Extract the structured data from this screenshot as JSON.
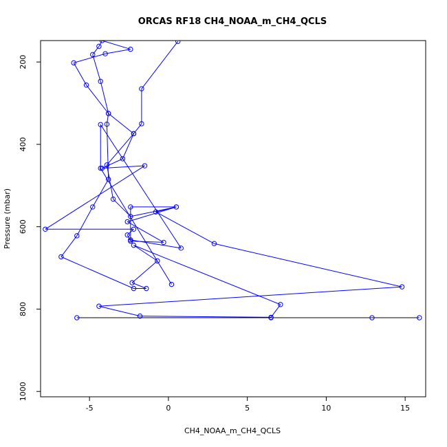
{
  "chart_data": {
    "type": "scatter",
    "title": "ORCAS RF18 CH4_NOAA_m_CH4_QCLS",
    "xlabel": "CH4_NOAA_m_CH4_QCLS",
    "ylabel": "Pressure (mbar)",
    "xlim": [
      -8.1,
      16.3
    ],
    "ylim": [
      1013,
      148
    ],
    "y_reversed": true,
    "x_ticks": [
      -5,
      0,
      5,
      10,
      15
    ],
    "x_tick_labels": [
      "-5",
      "0",
      "5",
      "10",
      "15"
    ],
    "y_ticks": [
      200,
      400,
      600,
      800,
      1000
    ],
    "y_tick_labels": [
      "200",
      "400",
      "600",
      "800",
      "1000"
    ],
    "grid": false,
    "series": [
      {
        "color": "#0000ff",
        "marker": "open-circle",
        "connect": true,
        "points": [
          {
            "x": 0.6,
            "y": 150
          },
          {
            "x": -1.7,
            "y": 265
          },
          {
            "x": -1.7,
            "y": 350
          },
          {
            "x": -2.2,
            "y": 374
          },
          {
            "x": -2.9,
            "y": 435
          },
          {
            "x": -4.2,
            "y": 458
          },
          {
            "x": -1.5,
            "y": 452
          },
          {
            "x": -7.8,
            "y": 606
          },
          {
            "x": -2.2,
            "y": 606
          },
          {
            "x": -2.6,
            "y": 620
          },
          {
            "x": -2.4,
            "y": 635
          },
          {
            "x": -0.3,
            "y": 638
          },
          {
            "x": -2.6,
            "y": 588
          },
          {
            "x": 0.5,
            "y": 552
          },
          {
            "x": -2.4,
            "y": 575
          },
          {
            "x": -3.5,
            "y": 533
          },
          {
            "x": -3.9,
            "y": 450
          },
          {
            "x": -2.2,
            "y": 374
          },
          {
            "x": -3.8,
            "y": 325
          },
          {
            "x": -4.3,
            "y": 247
          },
          {
            "x": -4.8,
            "y": 182
          },
          {
            "x": -4.4,
            "y": 162
          },
          {
            "x": -4.2,
            "y": 148
          },
          {
            "x": -2.4,
            "y": 169
          },
          {
            "x": -4.0,
            "y": 180
          },
          {
            "x": -6.0,
            "y": 202
          },
          {
            "x": -5.2,
            "y": 256
          },
          {
            "x": -3.8,
            "y": 325
          },
          {
            "x": -3.9,
            "y": 351
          },
          {
            "x": -3.8,
            "y": 485
          },
          {
            "x": -4.8,
            "y": 552
          },
          {
            "x": -5.8,
            "y": 622
          },
          {
            "x": -6.8,
            "y": 673
          },
          {
            "x": -2.2,
            "y": 750
          },
          {
            "x": -1.4,
            "y": 750
          },
          {
            "x": -2.3,
            "y": 736
          },
          {
            "x": -0.7,
            "y": 683
          },
          {
            "x": -2.2,
            "y": 645
          },
          {
            "x": 7.1,
            "y": 789
          },
          {
            "x": 6.5,
            "y": 820
          },
          {
            "x": -1.8,
            "y": 817
          },
          {
            "x": -4.4,
            "y": 793
          },
          {
            "x": 14.8,
            "y": 746
          },
          {
            "x": 2.9,
            "y": 641
          },
          {
            "x": -0.8,
            "y": 564
          },
          {
            "x": 0.5,
            "y": 552
          },
          {
            "x": -2.4,
            "y": 552
          },
          {
            "x": -2.4,
            "y": 632
          },
          {
            "x": 0.8,
            "y": 652
          },
          {
            "x": -4.3,
            "y": 352
          },
          {
            "x": -4.3,
            "y": 458
          },
          {
            "x": 0.2,
            "y": 740
          }
        ]
      },
      {
        "color": "#000000",
        "marker": "open-circle",
        "marker_color": "#0000ff",
        "connect": true,
        "points": [
          {
            "x": -5.8,
            "y": 821
          },
          {
            "x": 6.5,
            "y": 821
          },
          {
            "x": 12.9,
            "y": 821
          },
          {
            "x": 15.9,
            "y": 821
          }
        ]
      }
    ]
  }
}
